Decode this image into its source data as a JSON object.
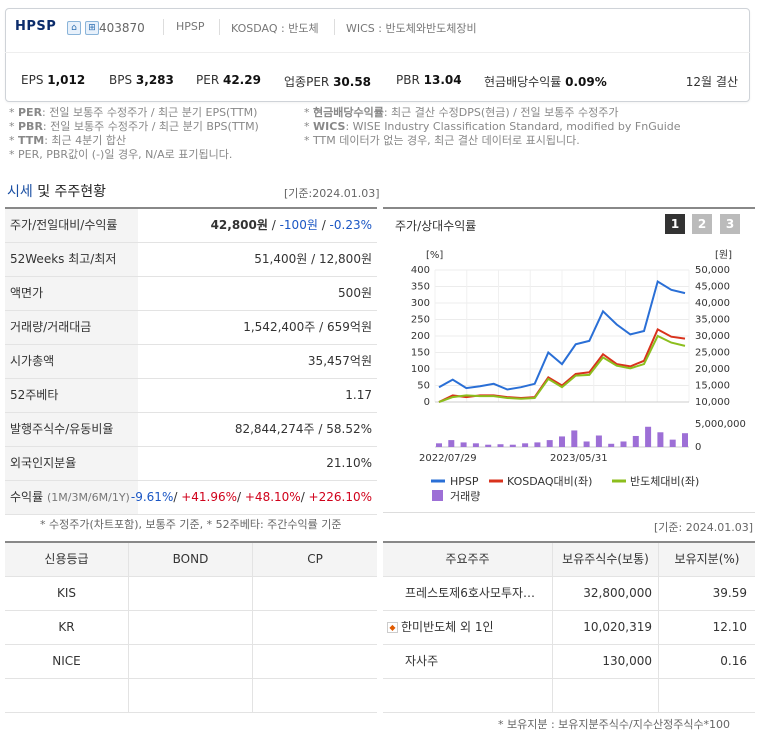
{
  "header": {
    "name": "HPSP",
    "code": "403870",
    "sub1": "HPSP",
    "sub2": "KOSDAQ : 반도체",
    "sub3": "WICS : 반도체와반도체장비",
    "metrics": [
      {
        "label": "EPS",
        "value": "1,012"
      },
      {
        "label": "BPS",
        "value": "3,283"
      },
      {
        "label": "PER",
        "value": "42.29"
      },
      {
        "label": "업종PER",
        "value": "30.58"
      },
      {
        "label": "PBR",
        "value": "13.04"
      },
      {
        "label": "현금배당수익률",
        "value": "0.09%"
      }
    ],
    "settle": "12월 결산"
  },
  "notes": {
    "left": [
      {
        "key": "PER",
        "text": ": 전일 보통주 수정주가 / 최근 분기 EPS(TTM)"
      },
      {
        "key": "PBR",
        "text": ": 전일 보통주 수정주가 / 최근 분기 BPS(TTM)"
      },
      {
        "key": "TTM",
        "text": ": 최근 4분기 합산"
      },
      {
        "key": "",
        "text": "PER, PBR값이 (-)일 경우, N/A로 표기됩니다."
      }
    ],
    "right": [
      {
        "key": "현금배당수익률",
        "text": ": 최근 결산 수정DPS(현금) / 전일 보통주 수정주가"
      },
      {
        "key": "WICS",
        "text": ": WISE Industry Classification Standard, modified by FnGuide"
      },
      {
        "key": "",
        "text": "TTM 데이터가 없는 경우, 최근 결산 데이터로 표시됩니다."
      }
    ]
  },
  "section": {
    "title_blue": "시세",
    "title_rest": " 및 주주현황",
    "date": "[기준:2024.01.03]"
  },
  "price_table": {
    "rows": [
      {
        "label": "주가/전일대비/수익률"
      },
      {
        "label": "52Weeks 최고/최저",
        "value": "51,400원 / 12,800원"
      },
      {
        "label": "액면가",
        "value": "500원"
      },
      {
        "label": "거래량/거래대금",
        "value": "1,542,400주 / 659억원"
      },
      {
        "label": "시가총액",
        "value": "35,457억원"
      },
      {
        "label": "52주베타",
        "value": "1.17"
      },
      {
        "label": "발행주식수/유동비율",
        "value": "82,844,274주 / 58.52%"
      },
      {
        "label": "외국인지분율",
        "value": "21.10%"
      },
      {
        "label": "수익률",
        "label_small": "(1M/3M/6M/1Y)"
      }
    ],
    "price": "42,800원",
    "change": "-100원",
    "rate": "-0.23%",
    "returns": [
      "-9.61%",
      "+41.96%",
      "+48.10%",
      "+226.10%"
    ],
    "sep": " / ",
    "note": "* 수정주가(차트포함), 보통주 기준, * 52주베타: 주간수익률 기준"
  },
  "chart": {
    "title": "주가/상대수익률",
    "tabs": [
      "1",
      "2",
      "3"
    ],
    "left_unit": "[%]",
    "right_unit": "[원]",
    "colors": {
      "hpsp": "#2a6fd6",
      "kosdaq": "#d9321c",
      "semi": "#8cbe1d",
      "volume": "#9d6fd6"
    },
    "legend": {
      "hpsp": "HPSP",
      "kosdaq": "KOSDAQ대비(좌)",
      "semi": "반도체대비(좌)",
      "volume": "거래량"
    }
  },
  "chart_data": {
    "type": "line",
    "left_ticks": [
      "400",
      "350",
      "300",
      "250",
      "200",
      "150",
      "100",
      "50",
      "0"
    ],
    "right_ticks": [
      "50,000",
      "45,000",
      "40,000",
      "35,000",
      "30,000",
      "25,000",
      "20,000",
      "15,000",
      "10,000"
    ],
    "vol_ticks": [
      "5,000,000",
      "0"
    ],
    "x_labels": [
      "2022/07/29",
      "2023/05/31"
    ],
    "ylim_left": [
      0,
      400
    ],
    "ylim_right": [
      10000,
      50000
    ],
    "series": [
      {
        "name": "HPSP",
        "values": [
          45,
          68,
          42,
          48,
          55,
          38,
          45,
          55,
          150,
          115,
          175,
          185,
          275,
          235,
          205,
          215,
          365,
          340,
          330
        ]
      },
      {
        "name": "KOSDAQ대비(좌)",
        "values": [
          0,
          20,
          15,
          20,
          20,
          15,
          12,
          15,
          75,
          50,
          85,
          90,
          145,
          115,
          108,
          125,
          220,
          198,
          192
        ]
      },
      {
        "name": "반도체대비(좌)",
        "values": [
          0,
          15,
          20,
          18,
          18,
          12,
          10,
          12,
          70,
          45,
          80,
          82,
          135,
          110,
          102,
          115,
          200,
          180,
          170
        ]
      },
      {
        "name": "거래량",
        "values": [
          0.8,
          1.5,
          1.0,
          0.8,
          0.5,
          0.6,
          0.5,
          0.8,
          1.0,
          1.5,
          2.3,
          3.6,
          1.2,
          2.5,
          0.7,
          1.2,
          2.4,
          4.4,
          3.2,
          1.6,
          3.0
        ]
      }
    ]
  },
  "date2": "[기준: 2024.01.03]",
  "credit": {
    "headers": [
      "신용등급",
      "BOND",
      "CP"
    ],
    "rows": [
      "KIS",
      "KR",
      "NICE",
      ""
    ]
  },
  "holders": {
    "headers": [
      "주요주주",
      "보유주식수(보통)",
      "보유지분(%)"
    ],
    "rows": [
      {
        "name": "프레스토제6호사모투자…",
        "shares": "32,800,000",
        "pct": "39.59"
      },
      {
        "name": "한미반도체 외 1인",
        "shares": "10,020,319",
        "pct": "12.10"
      },
      {
        "name": "자사주",
        "shares": "130,000",
        "pct": "0.16"
      },
      {
        "name": "",
        "shares": "",
        "pct": ""
      }
    ],
    "note": "* 보유지분 : 보유지분주식수/지수산정주식수*100"
  }
}
